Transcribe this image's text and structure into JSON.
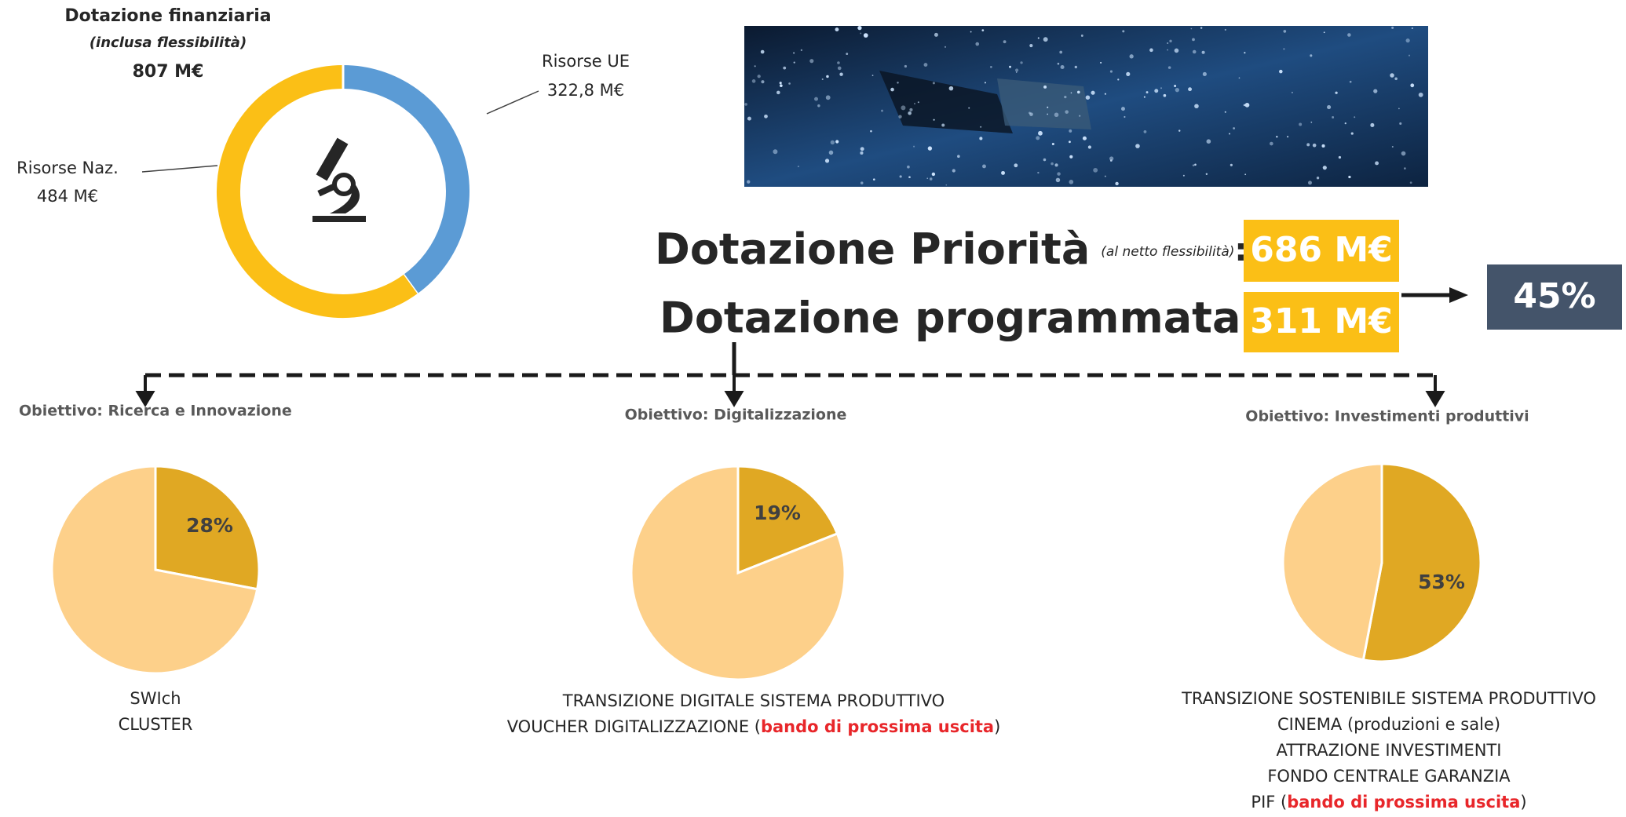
{
  "chart_data": [
    {
      "type": "donut",
      "title": "Dotazione finanziaria",
      "subtitle": "(inclusa flessibilità)",
      "total": "807 M€",
      "categories": [
        "Risorse UE",
        "Risorse Naz."
      ],
      "values": [
        322.8,
        484
      ],
      "value_labels": [
        "322,8 M€",
        "484 M€"
      ],
      "colors": [
        "#5b9bd5",
        "#fbbf16"
      ]
    },
    {
      "type": "pie",
      "title": "Obiettivo: Ricerca e Innovazione",
      "values": [
        28,
        72
      ],
      "value_labels": [
        "28%",
        null
      ],
      "colors": [
        "#e0a823",
        "#fdd08a"
      ],
      "notes": [
        [
          "SWIch"
        ],
        [
          "CLUSTER"
        ]
      ]
    },
    {
      "type": "pie",
      "title": "Obiettivo: Digitalizzazione",
      "values": [
        19,
        81
      ],
      "value_labels": [
        "19%",
        null
      ],
      "colors": [
        "#e0a823",
        "#fdd08a"
      ],
      "notes": [
        [
          "TRANSIZIONE DIGITALE SISTEMA PRODUTTIVO"
        ],
        [
          "VOUCHER DIGITALIZZAZIONE (",
          {
            "text": "bando di prossima uscita",
            "color": "#e8262a"
          },
          ")"
        ]
      ]
    },
    {
      "type": "pie",
      "title": "Obiettivo: Investimenti produttivi",
      "values": [
        53,
        47
      ],
      "value_labels": [
        "53%",
        null
      ],
      "colors": [
        "#e0a823",
        "#fdd08a"
      ],
      "notes": [
        [
          "TRANSIZIONE SOSTENIBILE SISTEMA PRODUTTIVO"
        ],
        [
          "CINEMA (produzioni e sale)"
        ],
        [
          "ATTRAZIONE INVESTIMENTI"
        ],
        [
          "FONDO CENTRALE GARANZIA"
        ],
        [
          "PIF (",
          {
            "text": "bando di prossima uscita",
            "color": "#e8262a"
          },
          ")"
        ]
      ]
    }
  ],
  "priority": {
    "label": "Dotazione Priorità",
    "note": "(al netto flessibilità)",
    "colon": ":",
    "amount": "686 M€"
  },
  "programmed": {
    "label": "Dotazione programmata:",
    "amount": "311 M€"
  },
  "share": "45%"
}
